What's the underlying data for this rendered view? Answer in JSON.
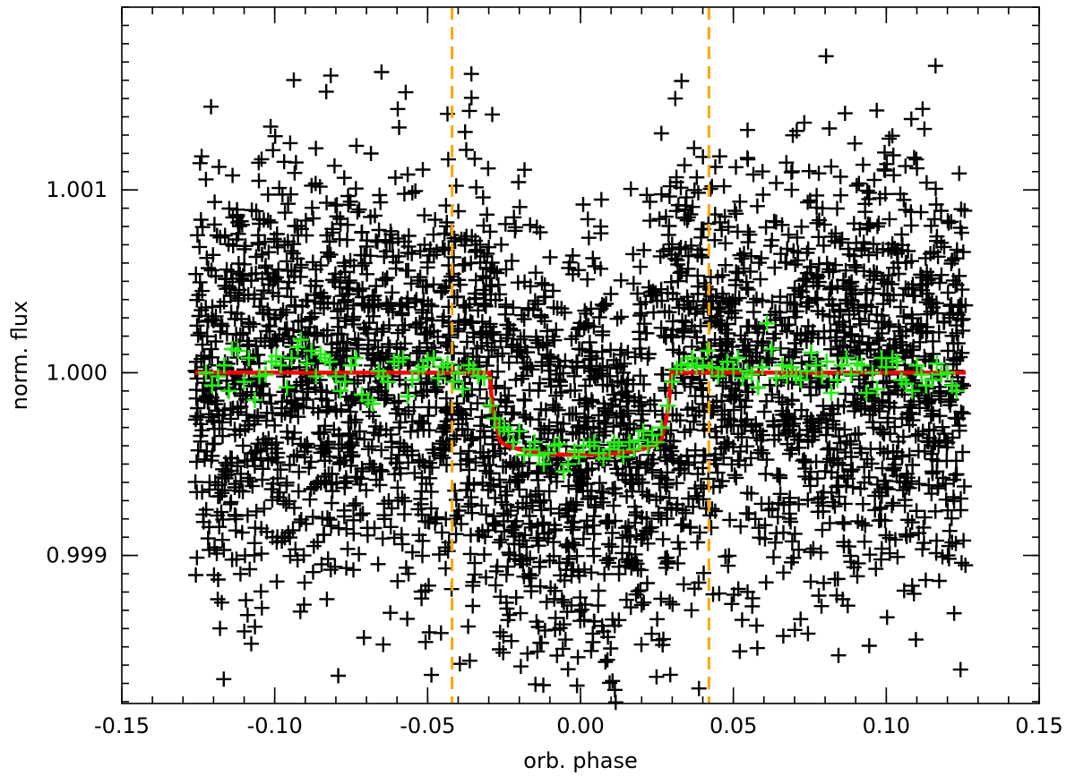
{
  "chart_data": {
    "type": "scatter",
    "title": "",
    "xlabel": "orb. phase",
    "ylabel": "norm. flux",
    "xlim": [
      -0.15,
      0.15
    ],
    "ylim": [
      0.99819,
      1.002
    ],
    "x_ticks": [
      {
        "value": -0.15,
        "label": "-0.15"
      },
      {
        "value": -0.1,
        "label": "-0.10"
      },
      {
        "value": -0.05,
        "label": "-0.05"
      },
      {
        "value": 0.0,
        "label": "0.00"
      },
      {
        "value": 0.05,
        "label": "0.05"
      },
      {
        "value": 0.1,
        "label": "0.10"
      },
      {
        "value": 0.15,
        "label": "0.15"
      }
    ],
    "x_minor_step": 0.01,
    "y_ticks": [
      {
        "value": 0.999,
        "label": "0.999"
      },
      {
        "value": 1.0,
        "label": "1.000"
      },
      {
        "value": 1.001,
        "label": "1.001"
      }
    ],
    "y_minor_step": 0.0001,
    "grid": false,
    "legend": "none",
    "colors": {
      "raw": "#000000",
      "binned": "#22ee11",
      "model": "#ff0000",
      "contacts": "#ffa500"
    },
    "series": [
      {
        "kind": "raw",
        "marker": "plus",
        "x_range": [
          -0.126,
          0.126
        ],
        "flux_scatter": 0.0006
      },
      {
        "kind": "binned",
        "marker": "plus",
        "points": [
          [
            -0.1225,
            1.0
          ],
          [
            -0.1205,
            0.99993
          ],
          [
            -0.1185,
            0.99998
          ],
          [
            -0.1165,
            1.00004
          ],
          [
            -0.115,
            0.9999
          ],
          [
            -0.114,
            1.00013
          ],
          [
            -0.112,
            1.00012
          ],
          [
            -0.11,
            0.99995
          ],
          [
            -0.1085,
            1.00008
          ],
          [
            -0.1065,
            0.99985
          ],
          [
            -0.105,
            0.99998
          ],
          [
            -0.103,
            0.99999
          ],
          [
            -0.101,
            1.00006
          ],
          [
            -0.0995,
            1.00009
          ],
          [
            -0.098,
            1.00004
          ],
          [
            -0.096,
            0.99992
          ],
          [
            -0.0945,
            1.00008
          ],
          [
            -0.0925,
            1.00014
          ],
          [
            -0.0915,
            1.00018
          ],
          [
            -0.0895,
            1.00005
          ],
          [
            -0.088,
            1.00012
          ],
          [
            -0.0865,
            0.99998
          ],
          [
            -0.085,
            1.0001
          ],
          [
            -0.0835,
            1.00008
          ],
          [
            -0.082,
            1.00006
          ],
          [
            -0.08,
            0.99998
          ],
          [
            -0.0785,
            0.9999
          ],
          [
            -0.077,
            0.99995
          ],
          [
            -0.075,
            1.00004
          ],
          [
            -0.0735,
            1.00008
          ],
          [
            -0.0715,
            0.99988
          ],
          [
            -0.0695,
            0.99985
          ],
          [
            -0.068,
            0.99983
          ],
          [
            -0.066,
            1.00001
          ],
          [
            -0.0645,
            0.99998
          ],
          [
            -0.063,
            0.99995
          ],
          [
            -0.061,
            1.00006
          ],
          [
            -0.0595,
            1.00006
          ],
          [
            -0.058,
            1.00008
          ],
          [
            -0.0565,
            0.99987
          ],
          [
            -0.055,
            0.99996
          ],
          [
            -0.053,
            1.00001
          ],
          [
            -0.0515,
            1.00003
          ],
          [
            -0.05,
            1.00007
          ],
          [
            -0.048,
            1.00008
          ],
          [
            -0.0465,
            0.99997
          ],
          [
            -0.045,
            1.00003
          ],
          [
            -0.0435,
            1.00005
          ],
          [
            -0.0415,
            0.99995
          ],
          [
            -0.04,
            1.0
          ],
          [
            -0.0385,
            0.99991
          ],
          [
            -0.0365,
            1.00004
          ],
          [
            -0.035,
            1.00002
          ],
          [
            -0.0335,
            0.99998
          ],
          [
            -0.0315,
            0.99997
          ],
          [
            -0.0295,
            0.99982
          ],
          [
            -0.028,
            0.99975
          ],
          [
            -0.0265,
            0.9997
          ],
          [
            -0.025,
            0.9997
          ],
          [
            -0.0235,
            0.99968
          ],
          [
            -0.022,
            0.99962
          ],
          [
            -0.02,
            0.99968
          ],
          [
            -0.0185,
            0.99955
          ],
          [
            -0.0165,
            0.99958
          ],
          [
            -0.015,
            0.99962
          ],
          [
            -0.0135,
            0.99955
          ],
          [
            -0.012,
            0.9995
          ],
          [
            -0.0105,
            0.99956
          ],
          [
            -0.0085,
            0.9996
          ],
          [
            -0.007,
            0.99961
          ],
          [
            -0.0055,
            0.99946
          ],
          [
            -0.004,
            0.9995
          ],
          [
            -0.002,
            0.99957
          ],
          [
            -0.0005,
            0.99954
          ],
          [
            0.001,
            0.9996
          ],
          [
            0.003,
            0.9996
          ],
          [
            0.0045,
            0.99962
          ],
          [
            0.006,
            0.99956
          ],
          [
            0.0075,
            0.99953
          ],
          [
            0.0095,
            0.99958
          ],
          [
            0.011,
            0.99962
          ],
          [
            0.0125,
            0.9996
          ],
          [
            0.014,
            0.99954
          ],
          [
            0.016,
            0.99962
          ],
          [
            0.0175,
            0.99958
          ],
          [
            0.019,
            0.99963
          ],
          [
            0.0205,
            0.99968
          ],
          [
            0.022,
            0.9996
          ],
          [
            0.0235,
            0.99966
          ],
          [
            0.025,
            0.99962
          ],
          [
            0.0265,
            0.9997
          ],
          [
            0.0285,
            0.99982
          ],
          [
            0.03,
            0.99995
          ],
          [
            0.0315,
            1.00002
          ],
          [
            0.033,
            1.00004
          ],
          [
            0.035,
            1.00005
          ],
          [
            0.0365,
            1.00008
          ],
          [
            0.038,
            1.00003
          ],
          [
            0.04,
            1.00004
          ],
          [
            0.0415,
            1.00012
          ],
          [
            0.043,
            1.00003
          ],
          [
            0.045,
            0.99998
          ],
          [
            0.0465,
            1.00002
          ],
          [
            0.048,
            1.00006
          ],
          [
            0.05,
            1.00002
          ],
          [
            0.0515,
            1.00008
          ],
          [
            0.053,
            0.99997
          ],
          [
            0.0545,
            1.00001
          ],
          [
            0.056,
            0.99999
          ],
          [
            0.058,
            0.99992
          ],
          [
            0.0595,
            1.00003
          ],
          [
            0.061,
            1.00027
          ],
          [
            0.0625,
            1.00013
          ],
          [
            0.064,
            0.99997
          ],
          [
            0.066,
            1.00004
          ],
          [
            0.0675,
            0.99998
          ],
          [
            0.069,
            1.00003
          ],
          [
            0.0705,
            0.99998
          ],
          [
            0.072,
            0.99996
          ],
          [
            0.074,
            1.00001
          ],
          [
            0.0755,
            1.00011
          ],
          [
            0.077,
            1.00004
          ],
          [
            0.079,
            0.99998
          ],
          [
            0.0805,
            1.00006
          ],
          [
            0.082,
            0.99989
          ],
          [
            0.084,
            0.99996
          ],
          [
            0.0855,
            1.00004
          ],
          [
            0.087,
            1.00008
          ],
          [
            0.0885,
            0.99999
          ],
          [
            0.0905,
            1.00005
          ],
          [
            0.092,
            1.00004
          ],
          [
            0.0935,
            0.99989
          ],
          [
            0.0955,
            1.0
          ],
          [
            0.097,
            0.99991
          ],
          [
            0.0985,
            1.00008
          ],
          [
            0.1,
            1.00003
          ],
          [
            0.102,
            1.00008
          ],
          [
            0.1035,
            1.00006
          ],
          [
            0.105,
            0.99996
          ],
          [
            0.1065,
            0.99994
          ],
          [
            0.1085,
            0.9999
          ],
          [
            0.11,
            1.00004
          ],
          [
            0.1115,
            0.99999
          ],
          [
            0.113,
            0.99993
          ],
          [
            0.115,
            0.99996
          ],
          [
            0.1165,
            1.00005
          ],
          [
            0.118,
            0.99999
          ],
          [
            0.12,
            1.0
          ],
          [
            0.1215,
            0.99993
          ],
          [
            0.123,
            0.9999
          ]
        ]
      },
      {
        "kind": "model",
        "line": "solid",
        "baseline": 1.0,
        "depth": 0.00045,
        "ingress_start": -0.0295,
        "full_start": -0.0265,
        "full_end": 0.0265,
        "egress_end": 0.0295,
        "x_range": [
          -0.126,
          0.126
        ]
      }
    ],
    "vertical_lines": [
      {
        "x": -0.042,
        "style": "dashed"
      },
      {
        "x": 0.042,
        "style": "dashed"
      }
    ]
  }
}
